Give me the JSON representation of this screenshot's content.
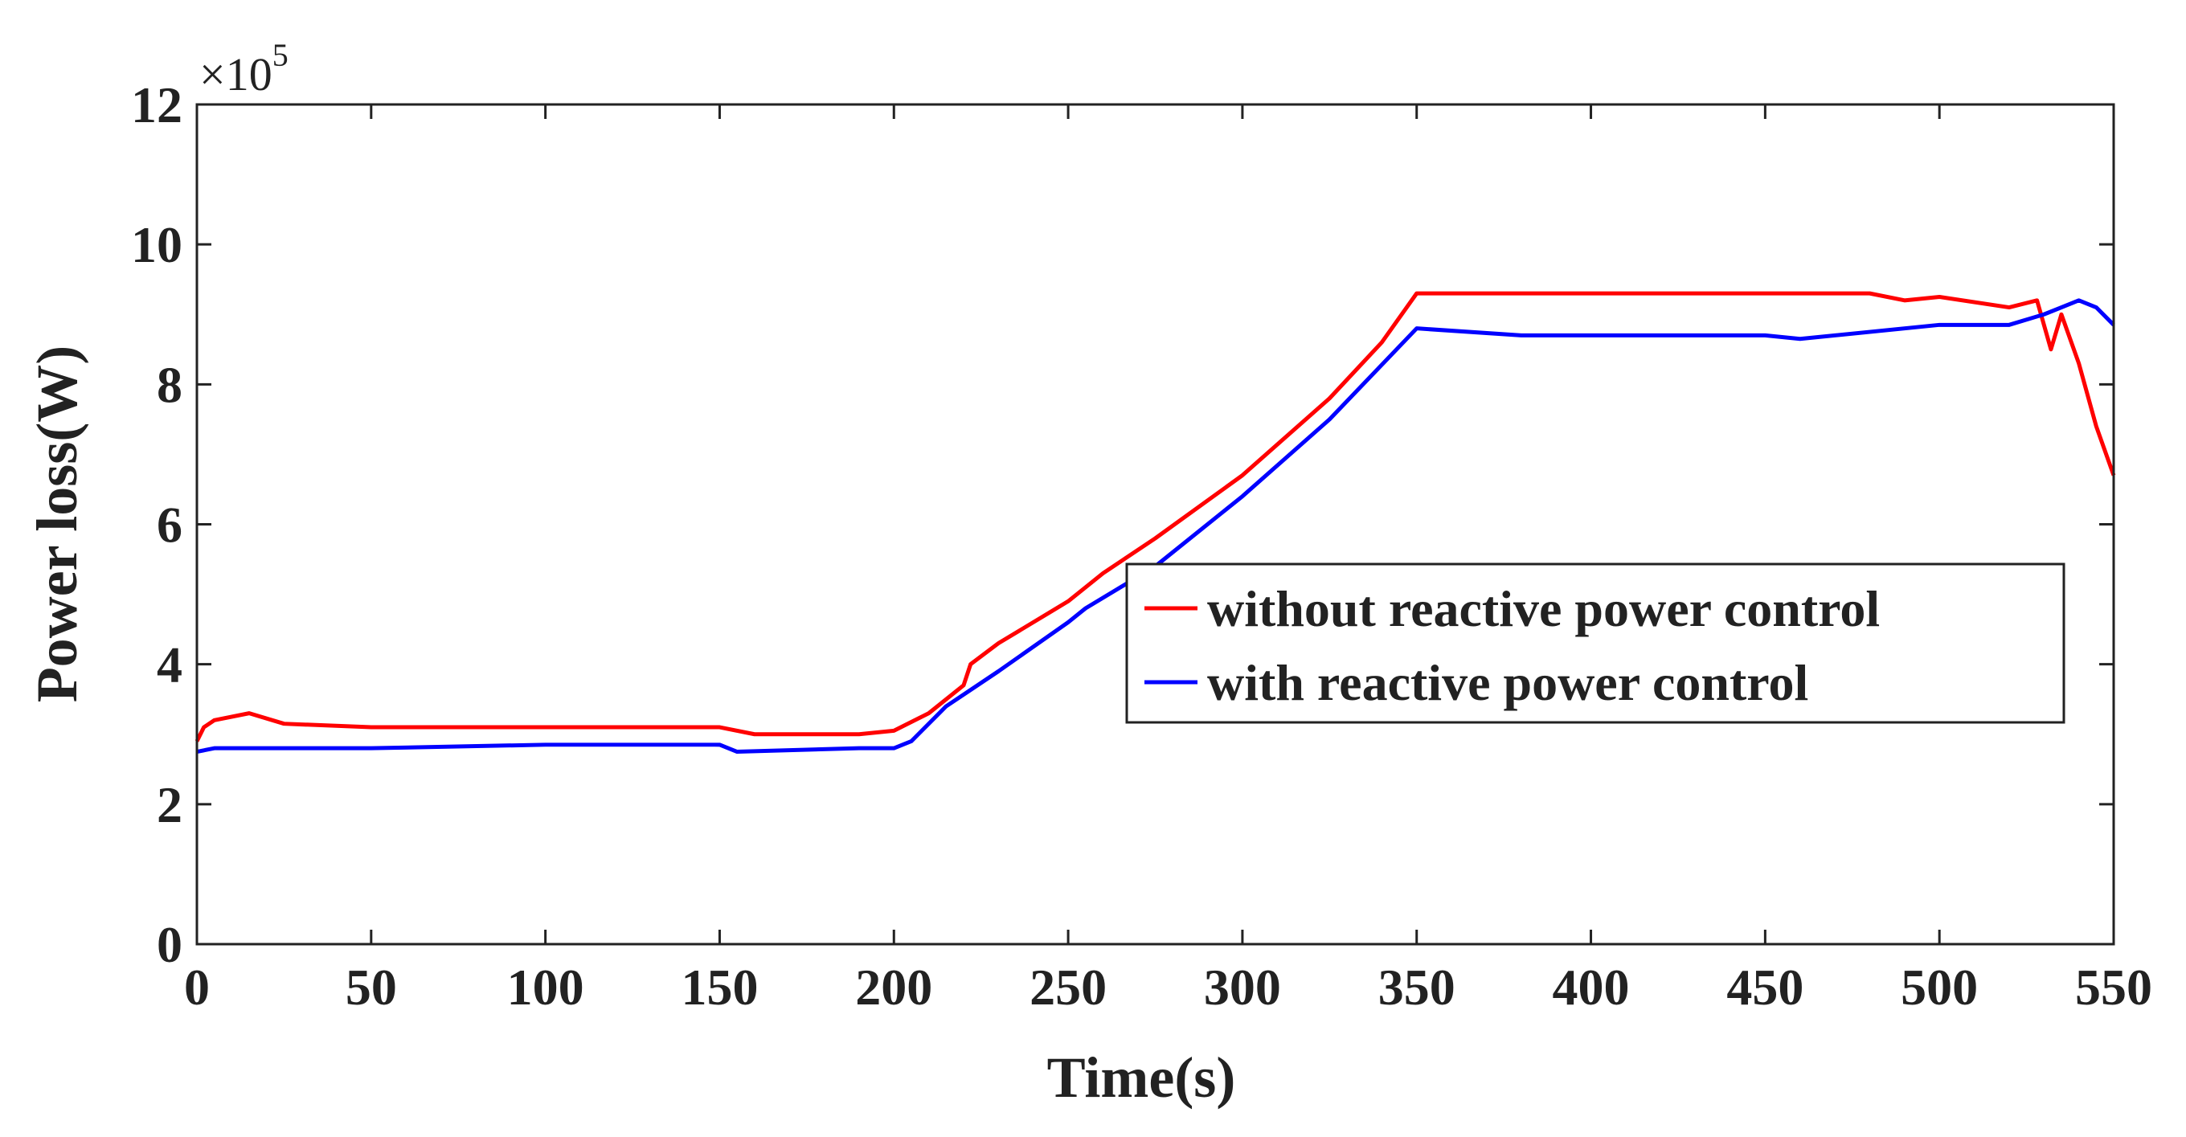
{
  "chart_data": {
    "type": "line",
    "x_label": "Time(s)",
    "y_label": "Power loss(W)",
    "y_multiplier": "×10",
    "y_multiplier_exponent": "5",
    "xlim": [
      0,
      550
    ],
    "xticks": [
      0,
      50,
      100,
      150,
      200,
      250,
      300,
      350,
      400,
      450,
      500,
      550
    ],
    "ylim": [
      0,
      12
    ],
    "yticks": [
      0,
      2,
      4,
      6,
      8,
      10,
      12
    ],
    "legend_position": "lower right",
    "series": [
      {
        "name": "without reactive power control",
        "color": "#ff0000",
        "x": [
          0,
          2,
          5,
          15,
          25,
          50,
          100,
          150,
          160,
          190,
          200,
          210,
          220,
          222,
          230,
          250,
          260,
          275,
          300,
          325,
          340,
          350,
          400,
          480,
          490,
          500,
          520,
          528,
          532,
          535,
          540,
          545,
          550
        ],
        "values": [
          2.9,
          3.1,
          3.2,
          3.3,
          3.15,
          3.1,
          3.1,
          3.1,
          3.0,
          3.0,
          3.05,
          3.3,
          3.7,
          4.0,
          4.3,
          4.9,
          5.3,
          5.8,
          6.7,
          7.8,
          8.6,
          9.3,
          9.3,
          9.3,
          9.2,
          9.25,
          9.1,
          9.2,
          8.5,
          9.0,
          8.3,
          7.4,
          6.7
        ]
      },
      {
        "name": "with reactive power control",
        "color": "#0000ff",
        "x": [
          0,
          5,
          50,
          100,
          150,
          155,
          190,
          200,
          205,
          215,
          230,
          250,
          255,
          275,
          300,
          325,
          350,
          380,
          450,
          460,
          500,
          520,
          530,
          540,
          545,
          550
        ],
        "values": [
          2.75,
          2.8,
          2.8,
          2.85,
          2.85,
          2.75,
          2.8,
          2.8,
          2.9,
          3.4,
          3.9,
          4.6,
          4.8,
          5.4,
          6.4,
          7.5,
          8.8,
          8.7,
          8.7,
          8.65,
          8.85,
          8.85,
          9.0,
          9.2,
          9.1,
          8.85
        ]
      }
    ]
  }
}
